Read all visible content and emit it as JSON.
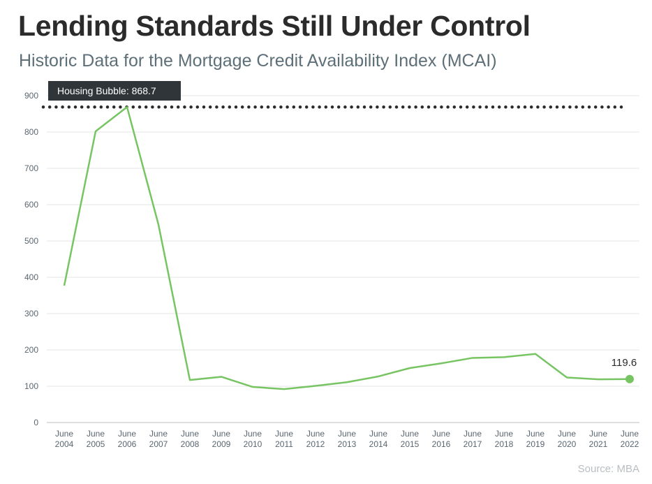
{
  "title": "Lending Standards Still Under Control",
  "subtitle": "Historic Data for the Mortgage Credit Availability Index (MCAI)",
  "source": "Source: MBA",
  "chart_data": {
    "type": "line",
    "categories": [
      [
        "June",
        "2004"
      ],
      [
        "June",
        "2005"
      ],
      [
        "June",
        "2006"
      ],
      [
        "June",
        "2007"
      ],
      [
        "June",
        "2008"
      ],
      [
        "June",
        "2009"
      ],
      [
        "June",
        "2010"
      ],
      [
        "June",
        "2011"
      ],
      [
        "June",
        "2012"
      ],
      [
        "June",
        "2013"
      ],
      [
        "June",
        "2014"
      ],
      [
        "June",
        "2015"
      ],
      [
        "June",
        "2016"
      ],
      [
        "June",
        "2017"
      ],
      [
        "June",
        "2018"
      ],
      [
        "June",
        "2019"
      ],
      [
        "June",
        "2020"
      ],
      [
        "June",
        "2021"
      ],
      [
        "June",
        "2022"
      ]
    ],
    "series": [
      {
        "values": [
          377,
          802,
          868.7,
          545,
          117,
          126,
          98,
          92,
          101,
          111,
          127,
          150,
          163,
          178,
          180,
          189,
          124,
          119,
          119.6
        ],
        "color": "#77c463"
      }
    ],
    "yticks": [
      0,
      100,
      200,
      300,
      400,
      500,
      600,
      700,
      800,
      900
    ],
    "ylim": [
      0,
      900
    ],
    "grid": true,
    "reference_line": {
      "value": 868.7,
      "label": "Housing Bubble: 868.7",
      "style": "dotted",
      "color": "#2b2b2b"
    },
    "end_label": "119.6",
    "label_box_color": "#2f3539"
  }
}
